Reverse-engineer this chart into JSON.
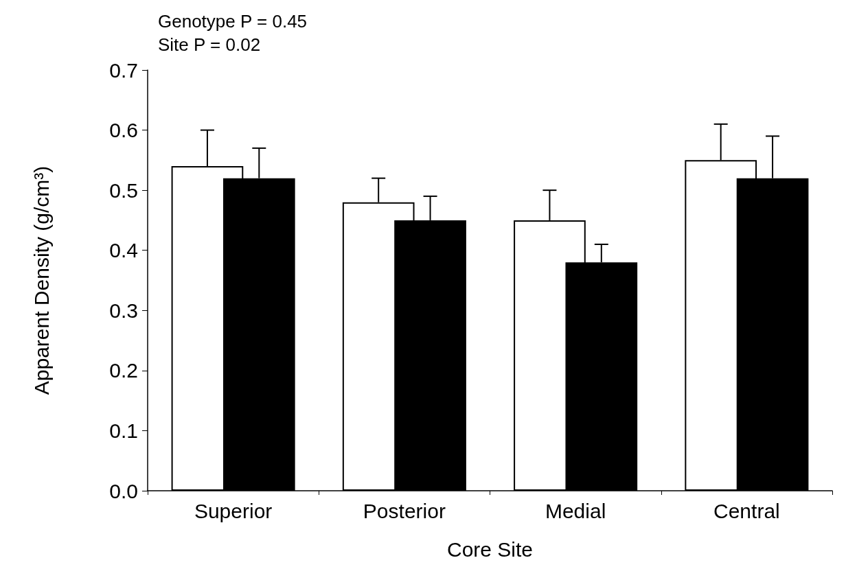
{
  "chart_data": {
    "type": "bar",
    "xlabel": "Core Site",
    "ylabel": "Apparent Density (g/cm³)",
    "annotations": [
      "Genotype P = 0.45",
      "Site P = 0.02"
    ],
    "categories": [
      "Superior",
      "Posterior",
      "Medial",
      "Central"
    ],
    "series": [
      {
        "color": "#ffffff",
        "values": [
          0.54,
          0.48,
          0.45,
          0.55
        ],
        "errors": [
          [
            0.54,
            0.6
          ],
          [
            0.48,
            0.52
          ],
          [
            0.45,
            0.5
          ],
          [
            0.55,
            0.61
          ]
        ]
      },
      {
        "color": "#000000",
        "values": [
          0.52,
          0.45,
          0.38,
          0.52
        ],
        "errors": [
          [
            0.52,
            0.57
          ],
          [
            0.45,
            0.49
          ],
          [
            0.38,
            0.41
          ],
          [
            0.52,
            0.59
          ]
        ]
      }
    ],
    "ylim": [
      0,
      0.7
    ],
    "yticks": [
      {
        "value": 0,
        "label": "0.0"
      },
      0.1,
      0.2,
      0.3,
      0.4,
      0.5,
      0.6,
      0.7
    ],
    "grid": false
  }
}
